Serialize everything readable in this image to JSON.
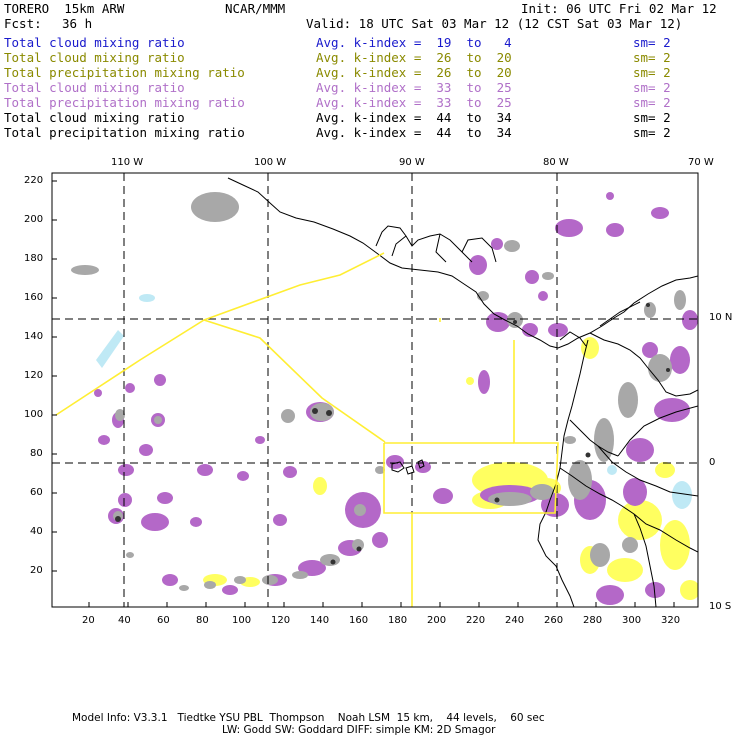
{
  "header": {
    "model_title": "TORERO  15km ARW",
    "org": "NCAR/MMM",
    "init": "Init: 06 UTC Fri 02 Mar 12",
    "fcst_label": "Fcst:",
    "fcst_value": "36 h",
    "valid": "Valid: 18 UTC Sat 03 Mar 12 (12 CST Sat 03 Mar 12)"
  },
  "legend": [
    {
      "field": "Total cloud mixing ratio",
      "k": "Avg. k-index =  19  to   4",
      "sm": "sm= 2",
      "color": "#1a1acc"
    },
    {
      "field": "Total cloud mixing ratio",
      "k": "Avg. k-index =  26  to  20",
      "sm": "sm= 2",
      "color": "#8a8a00"
    },
    {
      "field": "Total precipitation mixing ratio",
      "k": "Avg. k-index =  26  to  20",
      "sm": "sm= 2",
      "color": "#8a8a00"
    },
    {
      "field": "Total cloud mixing ratio",
      "k": "Avg. k-index =  33  to  25",
      "sm": "sm= 2",
      "color": "#b070c8"
    },
    {
      "field": "Total precipitation mixing ratio",
      "k": "Avg. k-index =  33  to  25",
      "sm": "sm= 2",
      "color": "#b070c8"
    },
    {
      "field": "Total cloud mixing ratio",
      "k": "Avg. k-index =  44  to  34",
      "sm": "sm= 2",
      "color": "#000000"
    },
    {
      "field": "Total precipitation mixing ratio",
      "k": "Avg. k-index =  44  to  34",
      "sm": "sm= 2",
      "color": "#000000"
    }
  ],
  "axes": {
    "lon_labels": [
      "110 W",
      "100 W",
      "90 W",
      "80 W",
      "70 W"
    ],
    "lat_labels": [
      "10 N",
      "0",
      "10 S"
    ],
    "x_ticks": [
      "20",
      "40",
      "60",
      "80",
      "100",
      "120",
      "140",
      "160",
      "180",
      "200",
      "220",
      "240",
      "260",
      "280",
      "300",
      "320"
    ],
    "y_ticks": [
      "220",
      "200",
      "180",
      "160",
      "140",
      "120",
      "100",
      "80",
      "60",
      "40",
      "20"
    ]
  },
  "footer": {
    "line1": "Model Info: V3.3.1   Tiedtke YSU PBL  Thompson    Noah LSM  15 km,    44 levels,    60 sec",
    "line2": "LW: Godd SW: Goddard DIFF: simple KM: 2D Smagor"
  },
  "colors": {
    "gray": "#a8a8a8",
    "purple": "#b468c8",
    "yellow": "#ffff60",
    "lightblue": "#bfe9f5",
    "track": "#ffee33"
  }
}
